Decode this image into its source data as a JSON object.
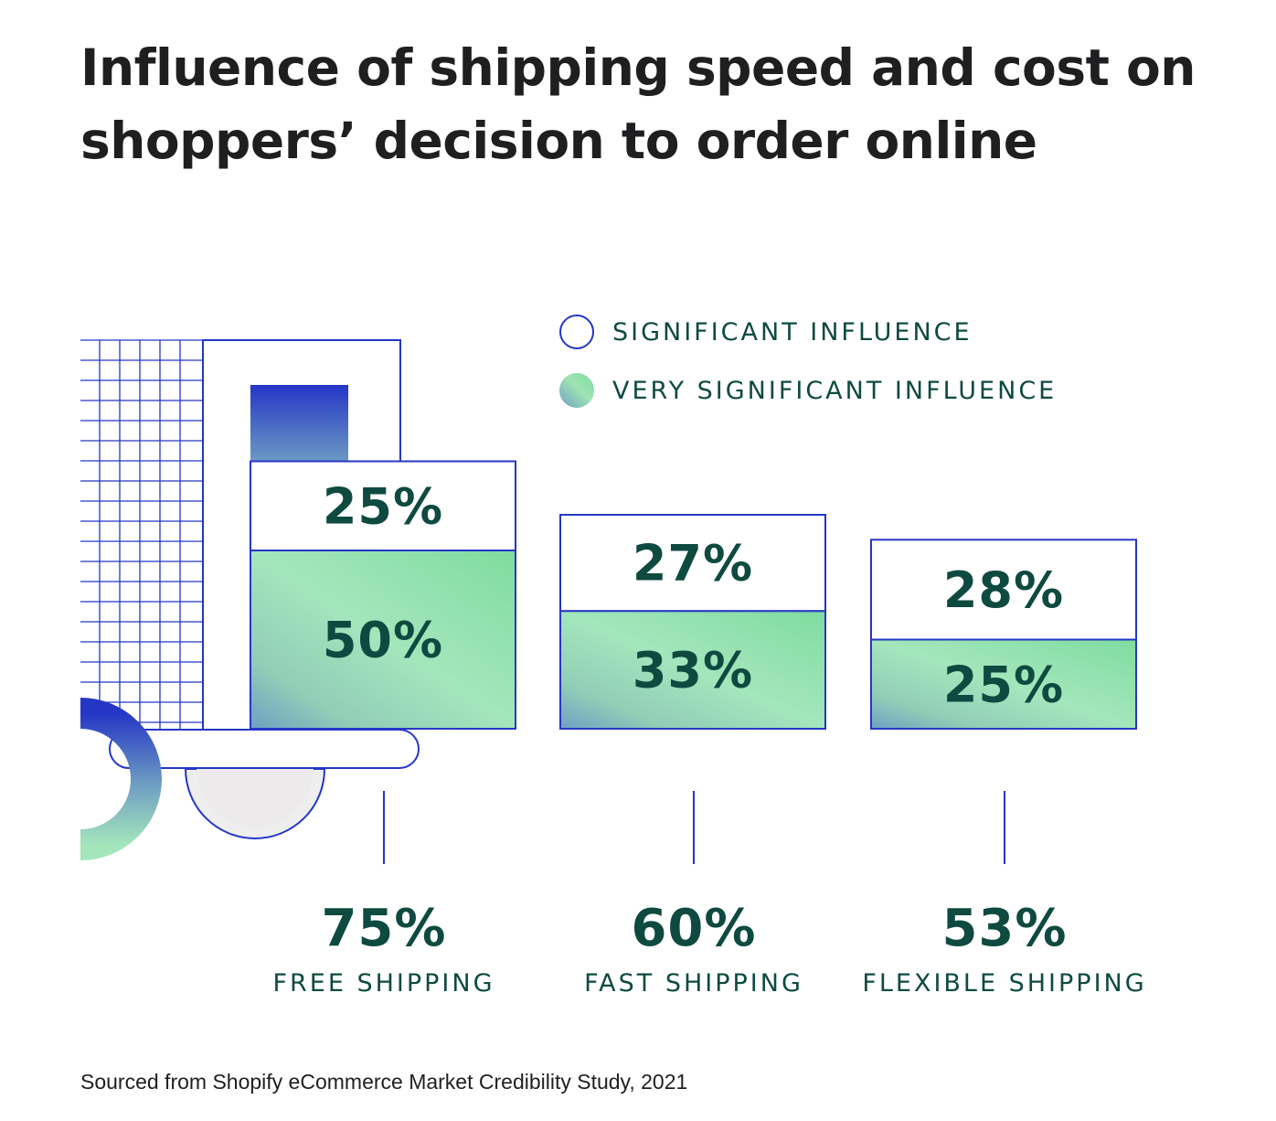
{
  "title": "Influence of shipping speed and cost on shoppers’ decision to order online",
  "legend": {
    "significant": "SIGNIFICANT INFLUENCE",
    "very_significant": "VERY SIGNIFICANT INFLUENCE"
  },
  "source": "Sourced from Shopify eCommerce Market Credibility Study, 2021",
  "colors": {
    "text": "#0e4a40",
    "outline": "#2536c6",
    "green_light": "#a3e6bc",
    "green": "#7fdc9f",
    "blue_grey": "#6f9fc2",
    "title": "#1f1f21"
  },
  "chart_data": {
    "type": "bar",
    "stacked": true,
    "categories": [
      "FREE SHIPPING",
      "FAST SHIPPING",
      "FLEXIBLE SHIPPING"
    ],
    "series": [
      {
        "name": "VERY SIGNIFICANT INFLUENCE",
        "values": [
          50,
          33,
          25
        ],
        "labels": [
          "50%",
          "33%",
          "25%"
        ]
      },
      {
        "name": "SIGNIFICANT INFLUENCE",
        "values": [
          25,
          27,
          28
        ],
        "labels": [
          "25%",
          "27%",
          "28%"
        ]
      }
    ],
    "totals": [
      75,
      60,
      53
    ],
    "total_labels": [
      "75%",
      "60%",
      "53%"
    ],
    "legend_position": "top-right",
    "grid": false
  }
}
